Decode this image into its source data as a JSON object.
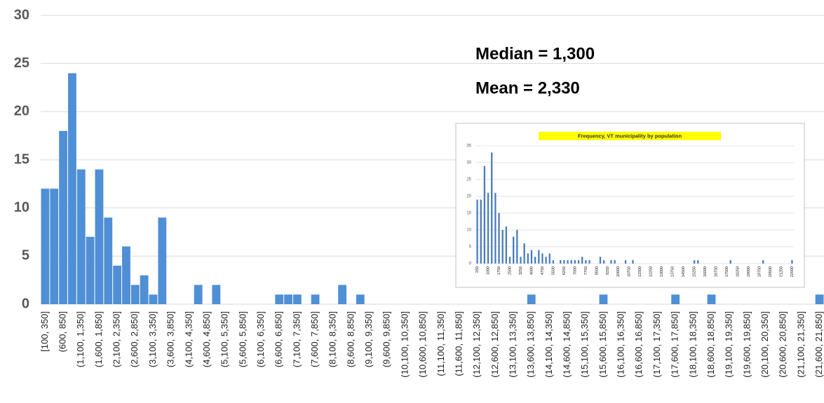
{
  "chart_data": [
    {
      "type": "bar",
      "annotations": [
        "Median = 1,300",
        "Mean = 2,330"
      ],
      "categories": [
        "[100, 350]",
        null,
        "(600, 850]",
        null,
        "(1,100, 1,350]",
        null,
        "(1,600, 1,850]",
        null,
        "(2,100, 2,350]",
        null,
        "(2,600, 2,850]",
        null,
        "(3,100, 3,350]",
        null,
        "(3,600, 3,850]",
        null,
        "(4,100, 4,350]",
        null,
        "(4,600, 4,850]",
        null,
        "(5,100, 5,350]",
        null,
        "(5,600, 5,850]",
        null,
        "(6,100, 6,350]",
        null,
        "(6,600, 6,850]",
        null,
        "(7,100, 7,350]",
        null,
        "(7,600, 7,850]",
        null,
        "(8,100, 8,350]",
        null,
        "(8,600, 8,850]",
        null,
        "(9,100, 9,350]",
        null,
        "(9,600, 9,850]",
        null,
        "(10,100, 10,350]",
        null,
        "(10,600, 10,850]",
        null,
        "(11,100, 11,350]",
        null,
        "(11,600, 11,850]",
        null,
        "(12,100, 12,350]",
        null,
        "(12,600, 12,850]",
        null,
        "(13,100, 13,350]",
        null,
        "(13,600, 13,850]",
        null,
        "(14,100, 14,350]",
        null,
        "(14,600, 14,850]",
        null,
        "(15,100, 15,350]",
        null,
        "(15,600, 15,850]",
        null,
        "(16,100, 16,350]",
        null,
        "(16,600, 16,850]",
        null,
        "(17,100, 17,350]",
        null,
        "(17,600, 17,850]",
        null,
        "(18,100, 18,350]",
        null,
        "(18,600, 18,850]",
        null,
        "(19,100, 19,350]",
        null,
        "(19,600, 19,850]",
        null,
        "(20,100, 20,350]",
        null,
        "(20,600, 20,850]",
        null,
        "(21,100, 21,350]",
        null,
        "(21,600, 21,850]"
      ],
      "values": [
        12,
        12,
        18,
        24,
        14,
        7,
        14,
        9,
        4,
        6,
        2,
        3,
        1,
        9,
        0,
        0,
        0,
        2,
        0,
        2,
        0,
        0,
        0,
        0,
        0,
        0,
        1,
        1,
        1,
        0,
        1,
        0,
        0,
        2,
        0,
        1,
        0,
        0,
        0,
        0,
        0,
        0,
        0,
        0,
        0,
        0,
        0,
        0,
        0,
        0,
        0,
        0,
        0,
        0,
        1,
        0,
        0,
        0,
        0,
        0,
        0,
        0,
        1,
        0,
        0,
        0,
        0,
        0,
        0,
        0,
        1,
        0,
        0,
        0,
        1,
        0,
        0,
        0,
        0,
        0,
        0,
        0,
        0,
        0,
        0,
        0,
        1
      ],
      "color": "#4f8fd6",
      "ylim": [
        0,
        30
      ],
      "yticks": [
        0,
        5,
        10,
        15,
        20,
        25,
        30
      ],
      "grid": true
    },
    {
      "type": "bar",
      "title": "Frequency, VT municipality by population",
      "categories": [
        "250",
        null,
        null,
        "1000",
        null,
        null,
        "1750",
        null,
        null,
        "2500",
        null,
        null,
        "3250",
        null,
        null,
        "4000",
        null,
        null,
        "4750",
        null,
        null,
        "5500",
        null,
        null,
        "6250",
        null,
        null,
        "7000",
        null,
        null,
        "7750",
        null,
        null,
        "8500",
        null,
        null,
        "9250",
        null,
        null,
        "10000",
        null,
        null,
        "10750",
        null,
        null,
        "11500",
        null,
        null,
        "12250",
        null,
        null,
        "13000",
        null,
        null,
        "13750",
        null,
        null,
        "14500",
        null,
        null,
        "15250",
        null,
        null,
        "16000",
        null,
        null,
        "16750",
        null,
        null,
        "17500",
        null,
        null,
        "18250",
        null,
        null,
        "19000",
        null,
        null,
        "19750",
        null,
        null,
        "20500",
        null,
        null,
        "21250",
        null,
        null,
        "22000"
      ],
      "values": [
        19,
        19,
        29,
        21,
        33,
        21,
        15,
        10,
        11,
        2,
        8,
        10,
        2,
        6,
        3,
        4,
        2,
        4,
        3,
        2,
        3,
        1,
        0,
        1,
        1,
        1,
        1,
        1,
        1,
        2,
        1,
        1,
        0,
        0,
        2,
        1,
        0,
        1,
        1,
        0,
        0,
        1,
        0,
        1,
        0,
        0,
        0,
        0,
        0,
        0,
        0,
        0,
        0,
        0,
        0,
        0,
        0,
        0,
        0,
        0,
        1,
        1,
        0,
        0,
        0,
        0,
        0,
        0,
        0,
        0,
        1,
        0,
        0,
        0,
        0,
        0,
        0,
        0,
        0,
        1,
        0,
        0,
        0,
        0,
        0,
        0,
        0,
        1
      ],
      "color": "#4a7ebb",
      "ylim": [
        0,
        35
      ],
      "yticks": [
        0,
        5,
        10,
        15,
        20,
        25,
        30,
        35
      ],
      "grid": true
    }
  ]
}
